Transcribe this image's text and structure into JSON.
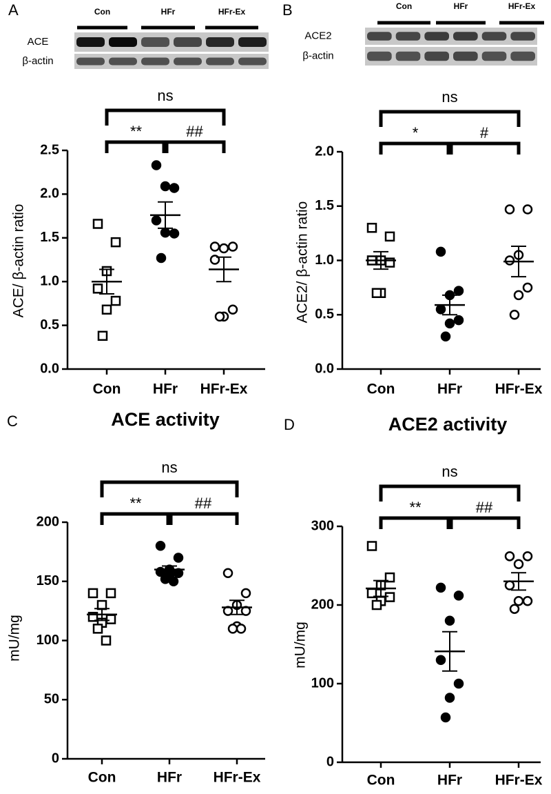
{
  "chart_data": [
    {
      "type": "dot",
      "panel": "A",
      "ylabel": "ACE/ β-actin ratio",
      "blot": {
        "lanes": [
          "Con",
          "HFr",
          "HFr-Ex"
        ],
        "rows": [
          "ACE",
          "β-actin"
        ]
      },
      "categories": [
        "Con",
        "HFr",
        "HFr-Ex"
      ],
      "values": [
        [
          1.66,
          1.45,
          1.12,
          0.92,
          0.78,
          0.68,
          0.38
        ],
        [
          2.33,
          2.07,
          2.09,
          1.7,
          1.55,
          1.56,
          1.27
        ],
        [
          1.4,
          1.4,
          1.38,
          1.25,
          0.68,
          0.6,
          0.6
        ]
      ],
      "means": [
        1.0,
        1.76,
        1.14
      ],
      "sems": [
        0.14,
        0.15,
        0.14
      ],
      "markers": [
        "square-open",
        "circle-filled",
        "circle-open"
      ],
      "annotations": [
        "**",
        "##",
        "ns"
      ],
      "ylim": [
        0,
        2.5
      ],
      "yticks": [
        {
          "value": 0,
          "label": "0.0"
        },
        {
          "value": 0.5,
          "label": "0.5"
        },
        {
          "value": 1,
          "label": "1.0"
        },
        {
          "value": 1.5,
          "label": "1.5"
        },
        {
          "value": 2,
          "label": "2.0"
        },
        {
          "value": 2.5,
          "label": "2.5"
        }
      ]
    },
    {
      "type": "dot",
      "panel": "B",
      "ylabel": "ACE2/ β-actin ratio",
      "blot": {
        "lanes": [
          "Con",
          "HFr",
          "HFr-Ex"
        ],
        "rows": [
          "ACE2",
          "β-actin"
        ]
      },
      "categories": [
        "Con",
        "HFr",
        "HFr-Ex"
      ],
      "values": [
        [
          1.3,
          1.22,
          1.0,
          1.0,
          0.98,
          0.7,
          0.7
        ],
        [
          1.08,
          0.72,
          0.68,
          0.55,
          0.45,
          0.42,
          0.3
        ],
        [
          1.47,
          1.47,
          1.05,
          1.0,
          0.75,
          0.68,
          0.5
        ]
      ],
      "means": [
        1.0,
        0.59,
        0.99
      ],
      "sems": [
        0.08,
        0.09,
        0.14
      ],
      "markers": [
        "square-open",
        "circle-filled",
        "circle-open"
      ],
      "annotations": [
        "*",
        "#",
        "ns"
      ],
      "ylim": [
        0,
        2.0
      ],
      "yticks": [
        {
          "value": 0,
          "label": "0.0"
        },
        {
          "value": 0.5,
          "label": "0.5"
        },
        {
          "value": 1,
          "label": "1.0"
        },
        {
          "value": 1.5,
          "label": "1.5"
        },
        {
          "value": 2,
          "label": "2.0"
        }
      ]
    },
    {
      "type": "dot",
      "panel": "C",
      "title": "ACE activity",
      "ylabel": "mU/mg",
      "categories": [
        "Con",
        "HFr",
        "HFr-Ex"
      ],
      "values": [
        [
          140,
          140,
          130,
          120,
          118,
          115,
          110,
          100
        ],
        [
          180,
          170,
          160,
          158,
          157,
          155,
          152,
          150
        ],
        [
          157,
          140,
          130,
          125,
          125,
          112,
          110,
          110
        ]
      ],
      "means": [
        122,
        160,
        128
      ],
      "sems": [
        5,
        3,
        6
      ],
      "markers": [
        "square-open",
        "circle-filled",
        "circle-open"
      ],
      "annotations": [
        "**",
        "##",
        "ns"
      ],
      "ylim": [
        0,
        200
      ],
      "yticks": [
        0,
        50,
        100,
        150,
        200
      ]
    },
    {
      "type": "dot",
      "panel": "D",
      "title": "ACE2 activity",
      "ylabel": "mU/mg",
      "categories": [
        "Con",
        "HFr",
        "HFr-Ex"
      ],
      "values": [
        [
          275,
          235,
          225,
          215,
          210,
          205,
          200
        ],
        [
          222,
          212,
          180,
          130,
          100,
          82,
          57
        ],
        [
          262,
          262,
          252,
          225,
          205,
          205,
          195
        ]
      ],
      "means": [
        221,
        141,
        230
      ],
      "sems": [
        10,
        25,
        11
      ],
      "markers": [
        "square-open",
        "circle-filled",
        "circle-open"
      ],
      "annotations": [
        "**",
        "##",
        "ns"
      ],
      "ylim": [
        0,
        300
      ],
      "yticks": [
        0,
        100,
        200,
        300
      ]
    }
  ]
}
